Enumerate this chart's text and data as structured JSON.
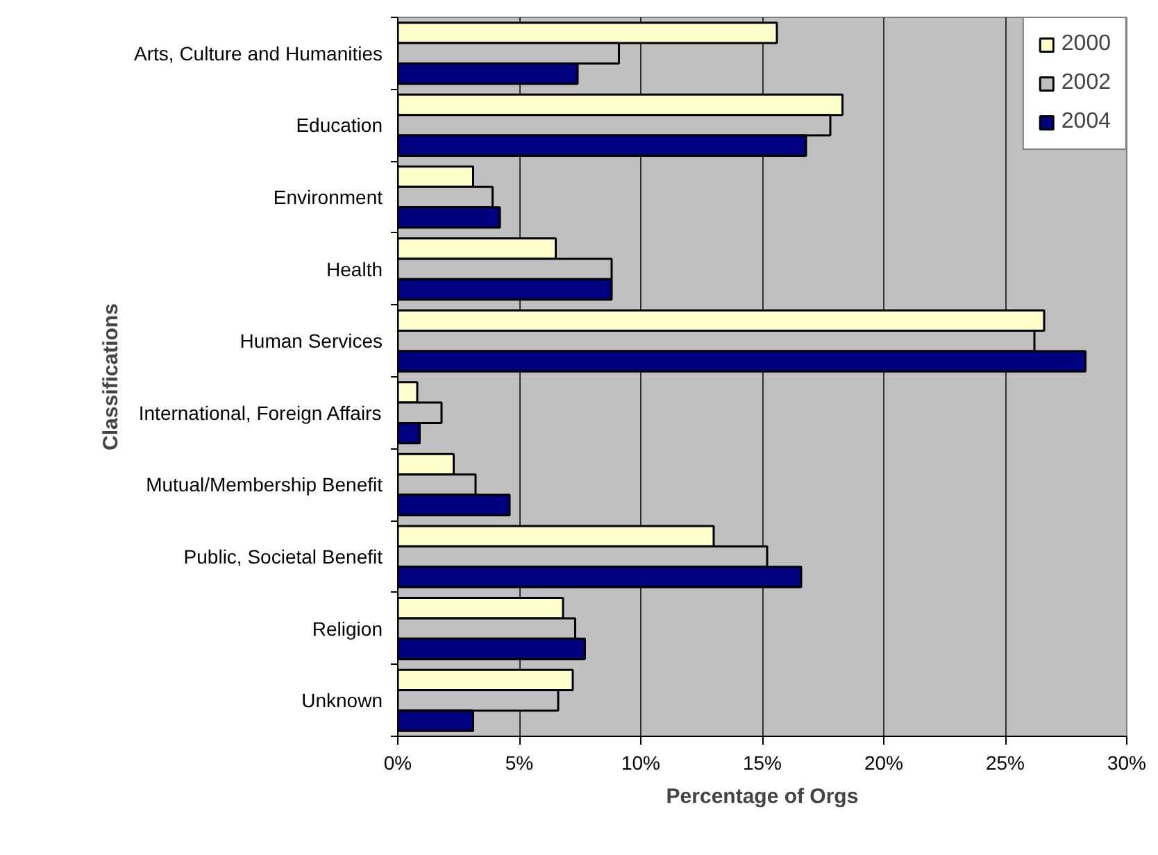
{
  "chart_data": {
    "type": "bar",
    "orientation": "horizontal",
    "xlabel": "Percentage of Orgs",
    "ylabel": "Classifications",
    "categories": [
      "Arts, Culture and Humanities",
      "Education",
      "Environment",
      "Health",
      "Human Services",
      "International, Foreign Affairs",
      "Mutual/Membership Benefit",
      "Public, Societal Benefit",
      "Religion",
      "Unknown"
    ],
    "series": [
      {
        "name": "2000",
        "color": "#ffffcc",
        "values": [
          15.6,
          18.3,
          3.1,
          6.5,
          26.6,
          0.8,
          2.3,
          13.0,
          6.8,
          7.2
        ]
      },
      {
        "name": "2002",
        "color": "#c0c0c0",
        "values": [
          9.1,
          17.8,
          3.9,
          8.8,
          26.2,
          1.8,
          3.2,
          15.2,
          7.3,
          6.6
        ]
      },
      {
        "name": "2004",
        "color": "#000080",
        "values": [
          7.4,
          16.8,
          4.2,
          8.8,
          28.3,
          0.9,
          4.6,
          16.6,
          7.7,
          3.1
        ]
      }
    ],
    "xlim": [
      0,
      30
    ],
    "xticks": [
      {
        "value": 0,
        "label": "0%"
      },
      {
        "value": 5,
        "label": "5%"
      },
      {
        "value": 10,
        "label": "10%"
      },
      {
        "value": 15,
        "label": "15%"
      },
      {
        "value": 20,
        "label": "20%"
      },
      {
        "value": 25,
        "label": "25%"
      },
      {
        "value": 30,
        "label": "30%"
      }
    ],
    "grid": "x",
    "legend": "top right"
  }
}
